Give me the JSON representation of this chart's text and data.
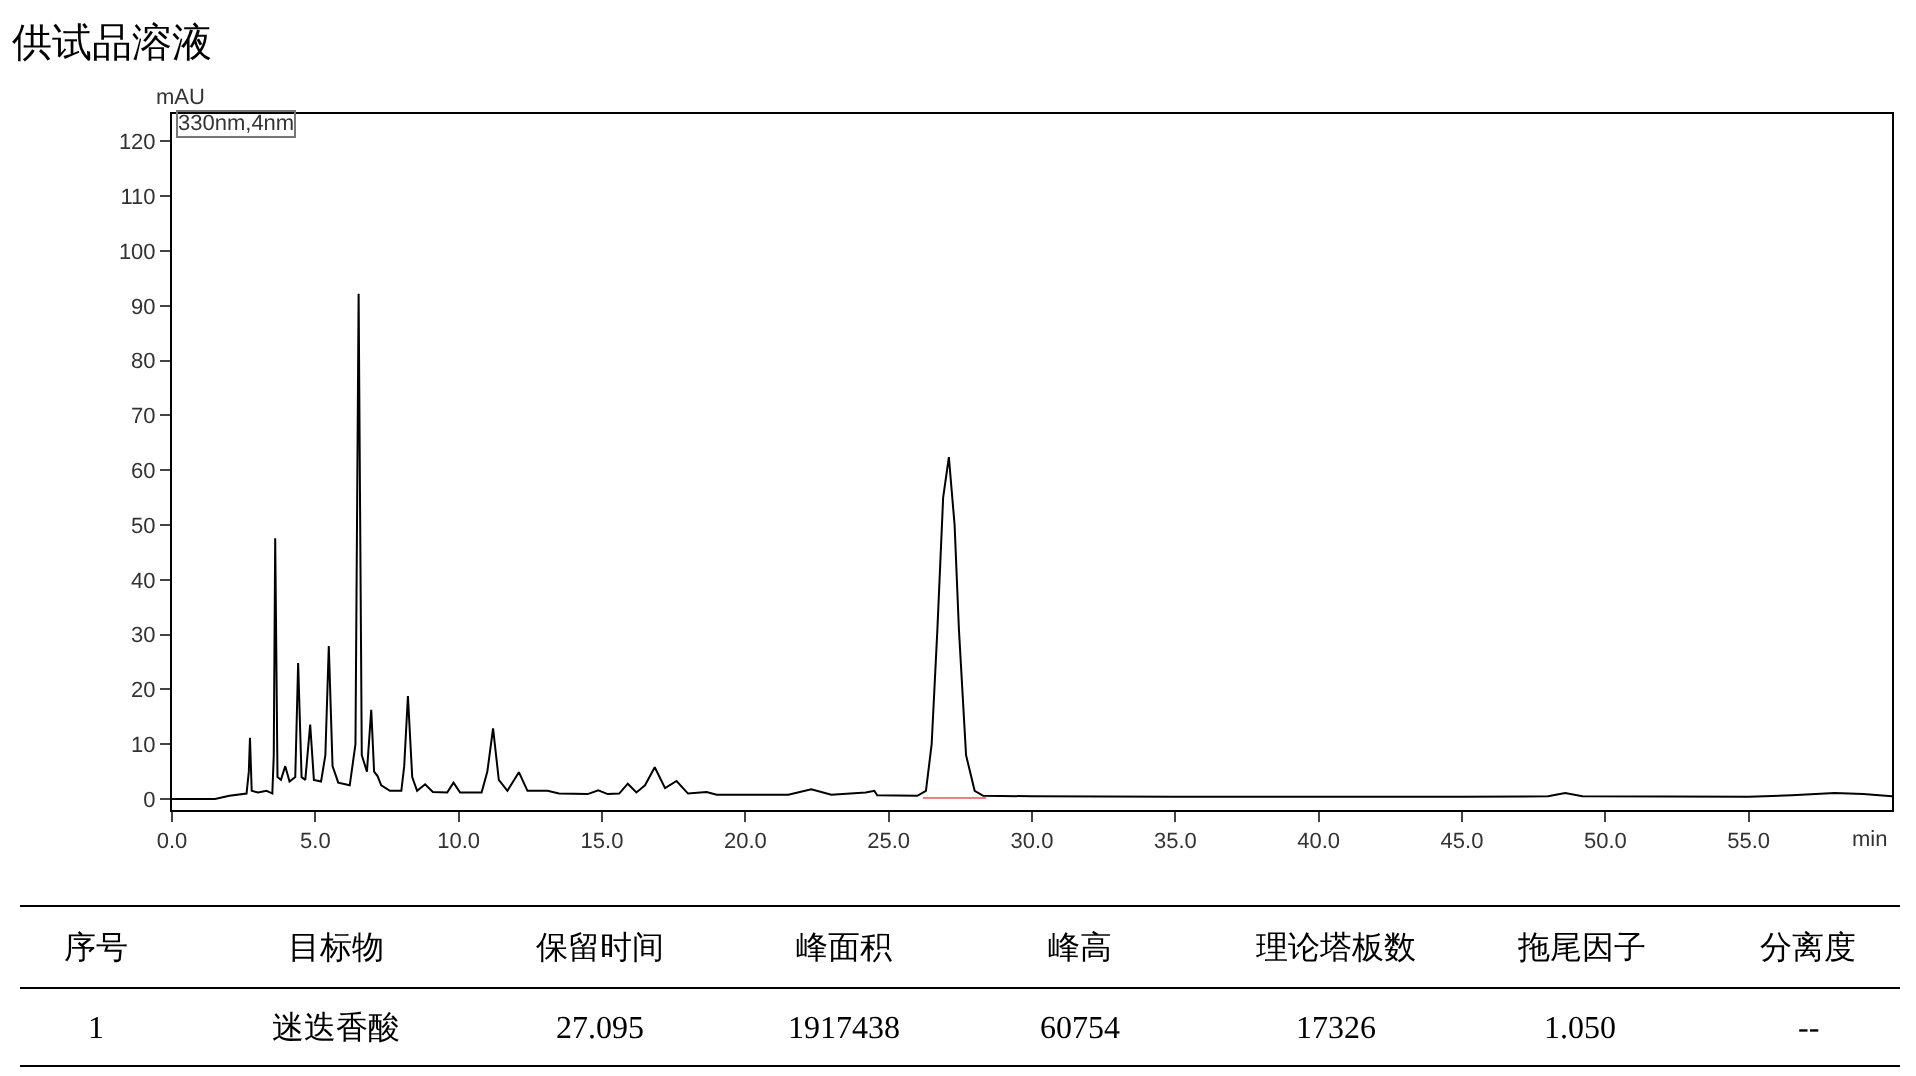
{
  "chart_data": {
    "type": "line",
    "title": "供试品溶液",
    "xlabel": "min",
    "ylabel": "mAU",
    "xlim": [
      0,
      60
    ],
    "xticks": [
      {
        "value": 0,
        "label": "0.0"
      },
      {
        "value": 5,
        "label": "5.0"
      },
      {
        "value": 10,
        "label": "10.0"
      },
      {
        "value": 15,
        "label": "15.0"
      },
      {
        "value": 20,
        "label": "20.0"
      },
      {
        "value": 25,
        "label": "25.0"
      },
      {
        "value": 30,
        "label": "30.0"
      },
      {
        "value": 35,
        "label": "35.0"
      },
      {
        "value": 40,
        "label": "40.0"
      },
      {
        "value": 45,
        "label": "45.0"
      },
      {
        "value": 50,
        "label": "50.0"
      },
      {
        "value": 55,
        "label": "55.0"
      }
    ],
    "ylim": [
      -2,
      125
    ],
    "yticks": [
      0,
      10,
      20,
      30,
      40,
      50,
      60,
      70,
      80,
      90,
      100,
      110,
      120
    ],
    "marker": "none",
    "line_style": "solid",
    "series": [
      {
        "color": "#000000",
        "x": [
          0,
          1.5,
          2.0,
          2.6,
          2.68,
          2.72,
          2.78,
          3.0,
          3.3,
          3.5,
          3.55,
          3.6,
          3.68,
          3.8,
          3.95,
          4.1,
          4.3,
          4.4,
          4.52,
          4.65,
          4.82,
          4.95,
          5.2,
          5.35,
          5.47,
          5.6,
          5.8,
          6.2,
          6.4,
          6.51,
          6.62,
          6.8,
          6.95,
          7.05,
          7.17,
          7.3,
          7.6,
          8.0,
          8.1,
          8.23,
          8.38,
          8.55,
          8.83,
          9.1,
          9.6,
          9.82,
          10.05,
          10.8,
          11.0,
          11.2,
          11.4,
          11.7,
          12.1,
          12.4,
          13.1,
          13.5,
          14.5,
          14.87,
          15.2,
          15.6,
          15.9,
          16.2,
          16.5,
          16.84,
          17.2,
          17.6,
          18.0,
          18.65,
          19.0,
          21.5,
          22.3,
          23.0,
          24.2,
          24.5,
          24.6,
          26.0,
          26.3,
          26.5,
          26.7,
          26.9,
          27.1,
          27.3,
          27.45,
          27.7,
          28.0,
          28.3,
          30,
          35,
          40,
          45,
          48.0,
          48.6,
          49.2,
          55,
          56.5,
          58,
          59,
          60
        ],
        "values": [
          0,
          0,
          0.6,
          1.0,
          5,
          11.2,
          1.5,
          1.2,
          1.5,
          1.0,
          8,
          47.6,
          4,
          3.5,
          6,
          3.2,
          4,
          24.8,
          4,
          3.5,
          13.6,
          3.5,
          3.2,
          8,
          27.9,
          6,
          3,
          2.5,
          10,
          92.2,
          8,
          5,
          16.3,
          5,
          4.2,
          2.5,
          1.5,
          1.5,
          6,
          18.8,
          4,
          1.5,
          2.7,
          1.3,
          1.2,
          3,
          1.2,
          1.2,
          5,
          12.9,
          3.5,
          1.5,
          4.9,
          1.5,
          1.5,
          1.0,
          0.9,
          1.6,
          0.9,
          1.0,
          2.8,
          1.2,
          2.5,
          5.8,
          2.0,
          3.3,
          1.0,
          1.3,
          0.8,
          0.8,
          1.8,
          0.8,
          1.2,
          1.5,
          0.7,
          0.6,
          1.5,
          10,
          31,
          55,
          62.4,
          50,
          31,
          8,
          1.5,
          0.6,
          0.5,
          0.4,
          0.4,
          0.4,
          0.5,
          1.1,
          0.5,
          0.4,
          0.7,
          1.1,
          0.9,
          0.5
        ]
      },
      {
        "color": "#f08080",
        "x": [
          26.2,
          28.4
        ],
        "values": [
          0.2,
          0.2
        ]
      }
    ],
    "annotations": [
      "330nm,4nm",
      "序号",
      "目标物",
      "保留时间",
      "峰面积",
      "峰高",
      "理论塔板数",
      "拖尾因子",
      "分离度",
      "1",
      "迷迭香酸",
      "27.095",
      "1917438",
      "60754",
      "17326",
      "1.050",
      "--"
    ]
  }
}
